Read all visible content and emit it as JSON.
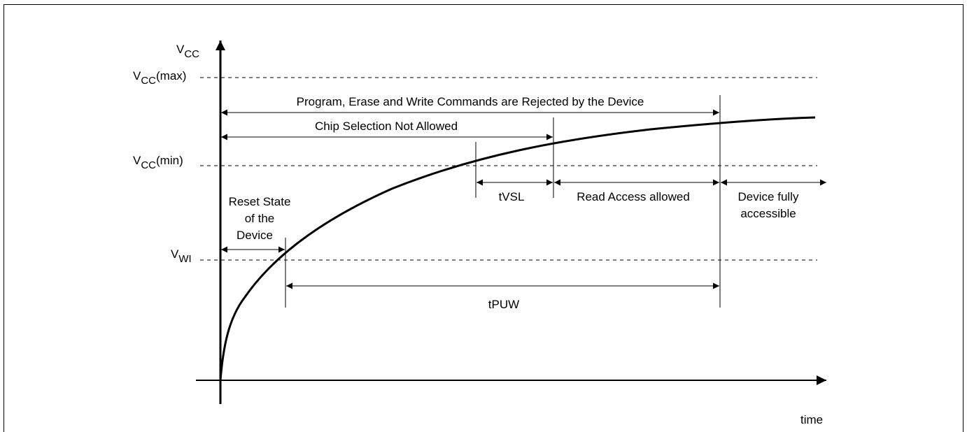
{
  "axes": {
    "y_label_main": "V",
    "y_label_sub": "CC",
    "x_label": "time"
  },
  "levels": {
    "vcc_max_main": "V",
    "vcc_max_sub": "CC",
    "vcc_max_suffix": "(max)",
    "vcc_min_main": "V",
    "vcc_min_sub": "CC",
    "vcc_min_suffix": "(min)",
    "vwi_main": "V",
    "vwi_sub": "WI"
  },
  "intervals": {
    "rejected": "Program, Erase and Write Commands are Rejected by the Device",
    "chip_selection": "Chip Selection Not Allowed",
    "reset_line1": "Reset State",
    "reset_line2": "of the",
    "reset_line3": "Device",
    "tvsl": "tVSL",
    "read_access": "Read Access allowed",
    "fully_line1": "Device fully",
    "fully_line2": "accessible",
    "tpuw": "tPUW"
  }
}
